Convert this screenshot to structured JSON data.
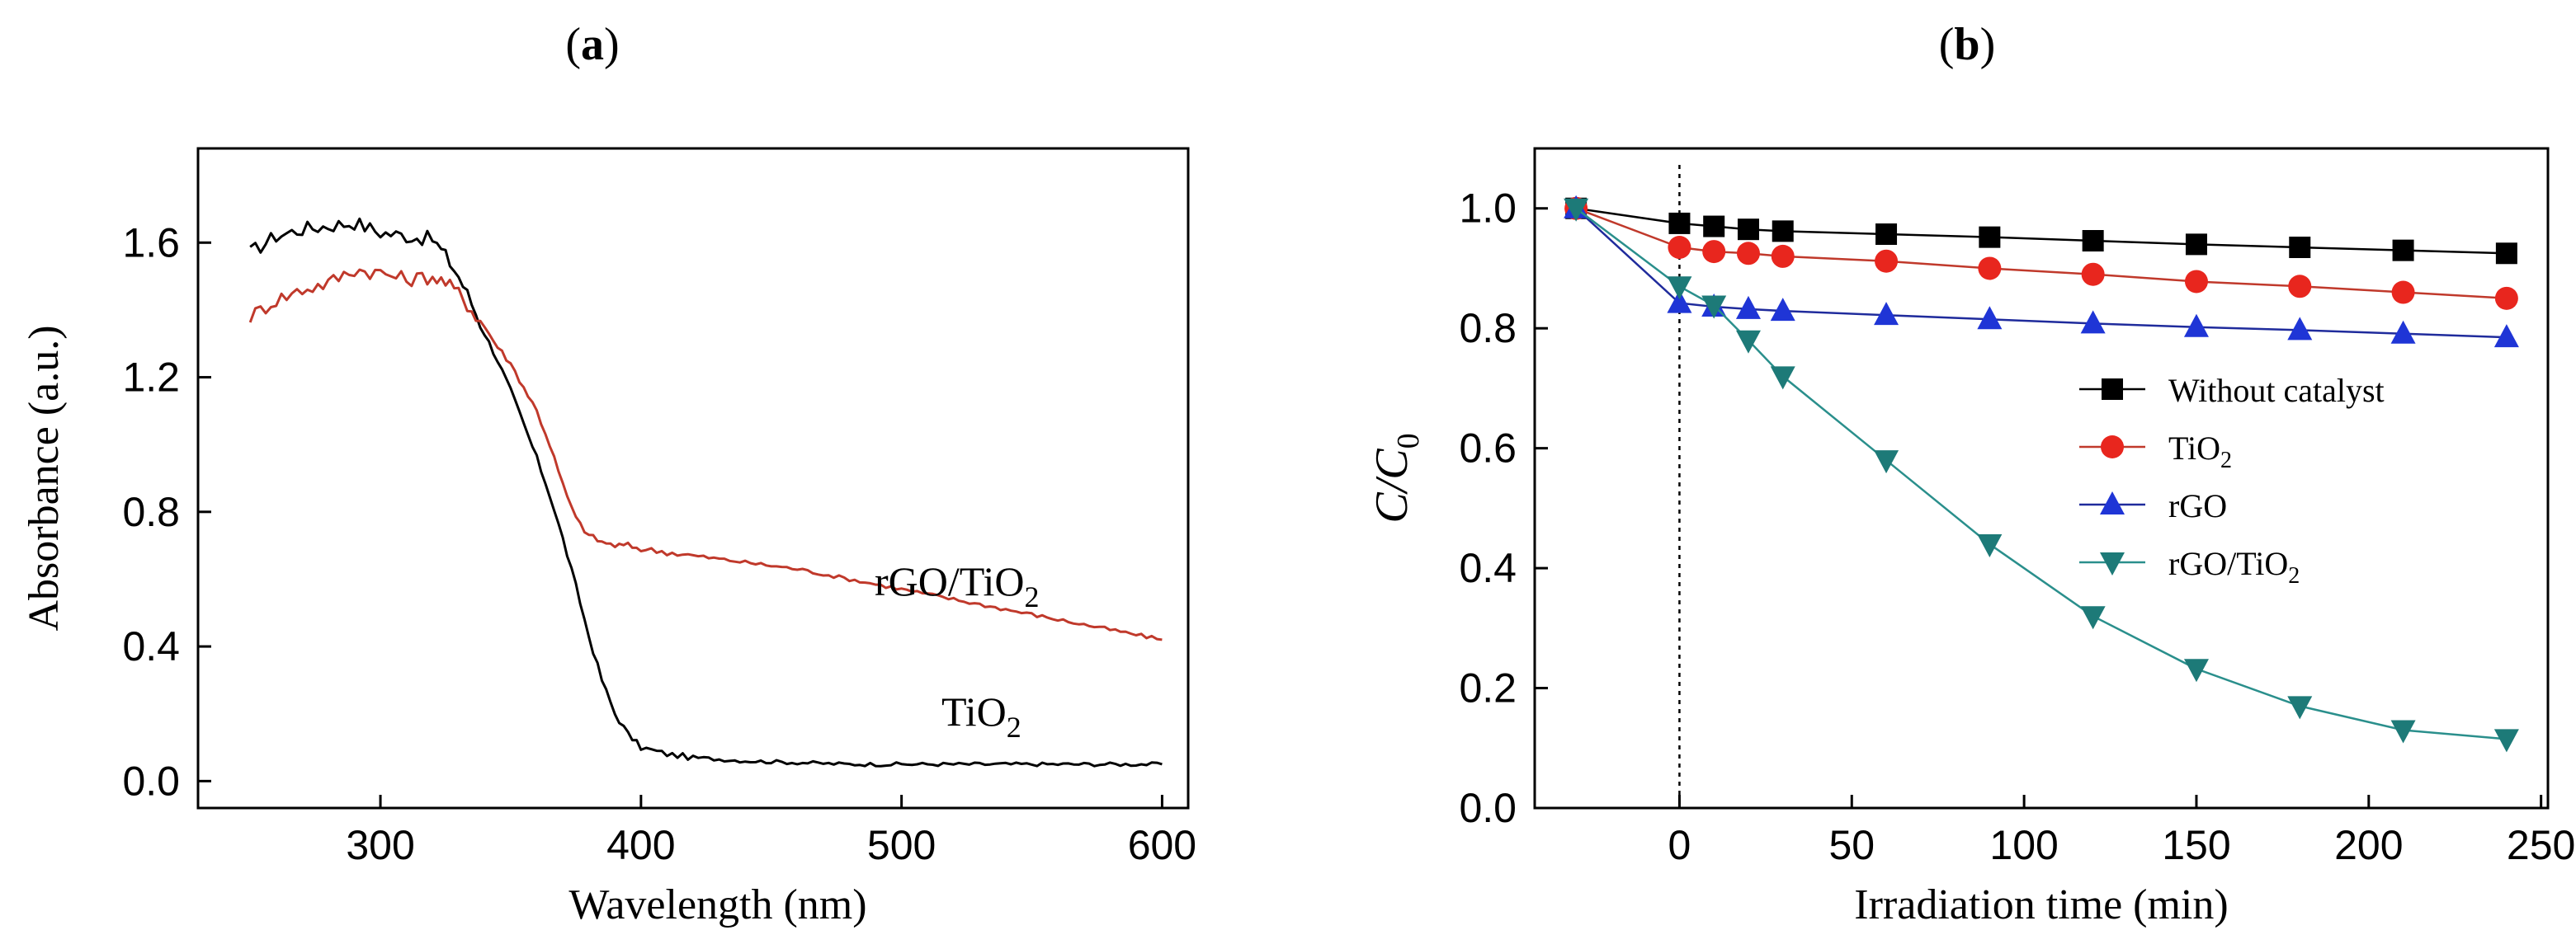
{
  "chart_data": [
    {
      "panel": "(a)",
      "panel_letter": "a",
      "type": "line",
      "xlabel": "Wavelength (nm)",
      "ylabel": "Absorbance (a.u.)",
      "xlim": [
        230,
        610
      ],
      "ylim": [
        -0.08,
        1.88
      ],
      "xticks": [
        300,
        400,
        500,
        600
      ],
      "yticks": [
        0.0,
        0.4,
        0.8,
        1.2,
        1.6
      ],
      "xtick_labels": [
        "300",
        "400",
        "500",
        "600"
      ],
      "ytick_labels": [
        "0.0",
        "0.4",
        "0.8",
        "1.2",
        "1.6"
      ],
      "series": [
        {
          "name": "TiO2",
          "label_main": "TiO",
          "label_sub": "2",
          "color": "#000000",
          "x": [
            250,
            260,
            270,
            280,
            290,
            300,
            310,
            320,
            325,
            330,
            335,
            340,
            345,
            350,
            355,
            360,
            365,
            370,
            375,
            380,
            385,
            390,
            395,
            400,
            410,
            420,
            440,
            460,
            480,
            500,
            550,
            600
          ],
          "y": [
            1.57,
            1.62,
            1.64,
            1.65,
            1.66,
            1.63,
            1.62,
            1.61,
            1.56,
            1.5,
            1.42,
            1.33,
            1.25,
            1.16,
            1.06,
            0.96,
            0.85,
            0.72,
            0.58,
            0.43,
            0.3,
            0.2,
            0.14,
            0.1,
            0.08,
            0.07,
            0.06,
            0.055,
            0.05,
            0.05,
            0.05,
            0.05
          ]
        },
        {
          "name": "rGO/TiO2",
          "label_main": "rGO/TiO",
          "label_sub": "2",
          "color": "#c0392b",
          "x": [
            250,
            260,
            270,
            280,
            290,
            300,
            310,
            320,
            325,
            330,
            335,
            340,
            345,
            350,
            355,
            360,
            365,
            370,
            375,
            380,
            385,
            390,
            395,
            400,
            410,
            420,
            440,
            460,
            480,
            500,
            520,
            540,
            560,
            580,
            600
          ],
          "y": [
            1.38,
            1.43,
            1.46,
            1.48,
            1.52,
            1.51,
            1.49,
            1.5,
            1.48,
            1.45,
            1.4,
            1.35,
            1.29,
            1.24,
            1.17,
            1.1,
            1.0,
            0.88,
            0.78,
            0.73,
            0.71,
            0.7,
            0.7,
            0.69,
            0.68,
            0.67,
            0.65,
            0.63,
            0.6,
            0.57,
            0.54,
            0.51,
            0.48,
            0.45,
            0.42
          ]
        }
      ]
    },
    {
      "panel": "(b)",
      "panel_letter": "b",
      "type": "line",
      "xlabel": "Irradiation time (min)",
      "ylabel_main": "C/C",
      "ylabel_sub": "0",
      "xlim": [
        -42,
        252
      ],
      "ylim": [
        0.0,
        1.1
      ],
      "xticks": [
        0,
        50,
        100,
        150,
        200,
        250
      ],
      "yticks": [
        0.0,
        0.2,
        0.4,
        0.6,
        0.8,
        1.0
      ],
      "xtick_labels": [
        "0",
        "50",
        "100",
        "150",
        "200",
        "250"
      ],
      "ytick_labels": [
        "0.0",
        "0.2",
        "0.4",
        "0.6",
        "0.8",
        "1.0"
      ],
      "reference_line_x": 0,
      "series": [
        {
          "name": "Without catalyst",
          "label_main": "Without catalyst",
          "label_sub": "",
          "marker": "square",
          "line_color": "#000000",
          "marker_color": "#000000",
          "x": [
            -30,
            0,
            10,
            20,
            30,
            60,
            90,
            120,
            150,
            180,
            210,
            240
          ],
          "y": [
            1.0,
            0.975,
            0.97,
            0.965,
            0.962,
            0.957,
            0.952,
            0.946,
            0.94,
            0.935,
            0.93,
            0.925
          ]
        },
        {
          "name": "TiO2",
          "label_main": "TiO",
          "label_sub": "2",
          "marker": "circle",
          "line_color": "#c0392b",
          "marker_color": "#e8261e",
          "x": [
            -30,
            0,
            10,
            20,
            30,
            60,
            90,
            120,
            150,
            180,
            210,
            240
          ],
          "y": [
            1.0,
            0.935,
            0.928,
            0.925,
            0.92,
            0.912,
            0.9,
            0.89,
            0.878,
            0.87,
            0.86,
            0.85
          ]
        },
        {
          "name": "rGO",
          "label_main": "rGO",
          "label_sub": "",
          "marker": "triangle-up",
          "line_color": "#1f2b9c",
          "marker_color": "#1f35d6",
          "x": [
            -30,
            0,
            10,
            20,
            30,
            60,
            90,
            120,
            150,
            180,
            210,
            240
          ],
          "y": [
            1.0,
            0.842,
            0.836,
            0.832,
            0.829,
            0.822,
            0.815,
            0.808,
            0.802,
            0.797,
            0.791,
            0.785
          ]
        },
        {
          "name": "rGO/TiO2",
          "label_main": "rGO/TiO",
          "label_sub": "2",
          "marker": "triangle-down",
          "line_color": "#2a8f8c",
          "marker_color": "#1d7a78",
          "x": [
            -30,
            0,
            10,
            20,
            30,
            60,
            90,
            120,
            150,
            180,
            210,
            240
          ],
          "y": [
            1.0,
            0.87,
            0.838,
            0.78,
            0.72,
            0.58,
            0.44,
            0.32,
            0.232,
            0.17,
            0.13,
            0.115
          ]
        }
      ]
    }
  ]
}
